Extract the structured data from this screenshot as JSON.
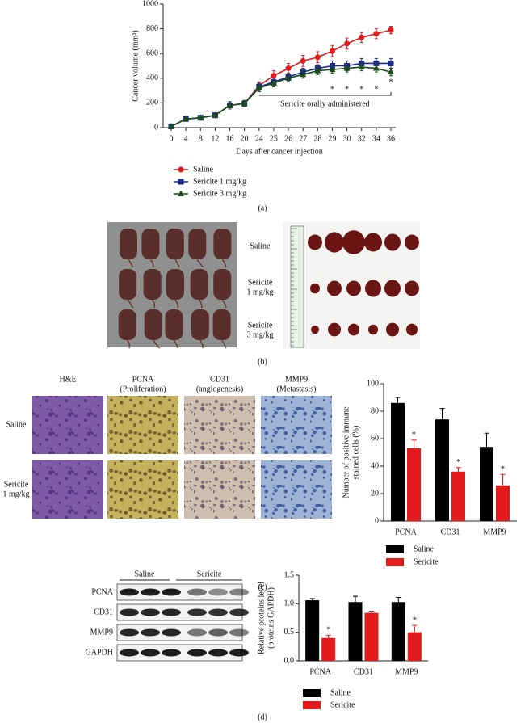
{
  "chart_data": [
    {
      "type": "line",
      "label": "(a)",
      "ylabel": "Cancer volume (mm³)",
      "xlabel": "Days after cancer injection",
      "categories": [
        "0",
        "4",
        "8",
        "12",
        "16",
        "20",
        "24",
        "25",
        "26",
        "27",
        "28",
        "29",
        "30",
        "32",
        "34",
        "36"
      ],
      "ylim": [
        0,
        1000
      ],
      "yticks": [
        0,
        200,
        400,
        600,
        800,
        1000
      ],
      "annotation": "Sericite orally administered",
      "series": [
        {
          "name": "Saline",
          "color": "#e31a1c",
          "marker": "circle",
          "values": [
            10,
            70,
            80,
            100,
            180,
            195,
            340,
            420,
            480,
            540,
            570,
            620,
            680,
            730,
            760,
            790
          ],
          "errors": [
            5,
            10,
            10,
            10,
            30,
            25,
            30,
            40,
            40,
            45,
            45,
            45,
            45,
            40,
            40,
            30
          ]
        },
        {
          "name": "Sericite 1 mg/kg",
          "color": "#1f2a8c",
          "marker": "square",
          "values": [
            10,
            70,
            80,
            100,
            180,
            195,
            330,
            370,
            410,
            450,
            480,
            500,
            500,
            520,
            520,
            520
          ],
          "errors": [
            5,
            10,
            10,
            10,
            30,
            25,
            30,
            30,
            30,
            30,
            30,
            40,
            40,
            40,
            40,
            40
          ]
        },
        {
          "name": "Sericite 3 mg/kg",
          "color": "#1b4d1b",
          "marker": "triangle",
          "values": [
            10,
            70,
            80,
            100,
            180,
            195,
            320,
            360,
            400,
            430,
            460,
            470,
            480,
            490,
            480,
            450
          ],
          "errors": [
            5,
            10,
            10,
            10,
            30,
            25,
            30,
            30,
            30,
            30,
            30,
            30,
            30,
            30,
            30,
            30
          ],
          "significance": [
            null,
            null,
            null,
            null,
            null,
            null,
            null,
            null,
            null,
            null,
            null,
            "*",
            "*",
            "*",
            "*",
            "*"
          ]
        }
      ]
    },
    {
      "type": "bar",
      "label": "(c)",
      "ylabel": [
        "Number of positive immune",
        "stained cells (%)"
      ],
      "categories": [
        "PCNA",
        "CD31",
        "MMP9"
      ],
      "ylim": [
        0,
        100
      ],
      "yticks": [
        0,
        20,
        40,
        60,
        80,
        100
      ],
      "series": [
        {
          "name": "Saline",
          "color": "#000000",
          "values": [
            86,
            74,
            54
          ],
          "errors": [
            4,
            8,
            10
          ]
        },
        {
          "name": "Sericite",
          "color": "#e31a1c",
          "values": [
            53,
            36,
            26
          ],
          "errors": [
            6,
            3,
            8
          ],
          "significance": [
            "*",
            "*",
            "*"
          ]
        }
      ]
    },
    {
      "type": "bar",
      "label": "(d)",
      "ylabel": [
        "Relative proteins level",
        "(proteins GAPDH)"
      ],
      "categories": [
        "PCNA",
        "CD31",
        "MMP9"
      ],
      "ylim": [
        0,
        1.5
      ],
      "yticks": [
        {
          "value": 0,
          "label": "0.0"
        },
        0.5,
        {
          "value": 1,
          "label": "1.0"
        },
        1.5
      ],
      "series": [
        {
          "name": "Saline",
          "color": "#000000",
          "values": [
            1.06,
            1.03,
            1.03
          ],
          "errors": [
            0.03,
            0.1,
            0.08
          ]
        },
        {
          "name": "Sericite",
          "color": "#e31a1c",
          "values": [
            0.4,
            0.84,
            0.5
          ],
          "errors": [
            0.05,
            0.03,
            0.12
          ],
          "significance": [
            "*",
            null,
            "*"
          ]
        }
      ]
    }
  ],
  "panel_b": {
    "label": "(b)",
    "rows": [
      [
        "Saline"
      ],
      [
        "Sericite",
        "1 mg/kg"
      ],
      [
        "Sericite",
        "3 mg/kg"
      ]
    ]
  },
  "panel_c": {
    "columns": [
      [
        "H&E"
      ],
      [
        "PCNA",
        "(Proliferation)"
      ],
      [
        "CD31",
        "(angiogenesis)"
      ],
      [
        "MMP9",
        "(Metastasis)"
      ]
    ],
    "rows": [
      [
        "Saline"
      ],
      [
        "Sericite",
        "1 mg/kg"
      ]
    ]
  },
  "panel_d": {
    "groups": [
      "Saline",
      "Sericite"
    ],
    "proteins": [
      "PCNA",
      "CD31",
      "MMP9",
      "GAPDH"
    ]
  }
}
